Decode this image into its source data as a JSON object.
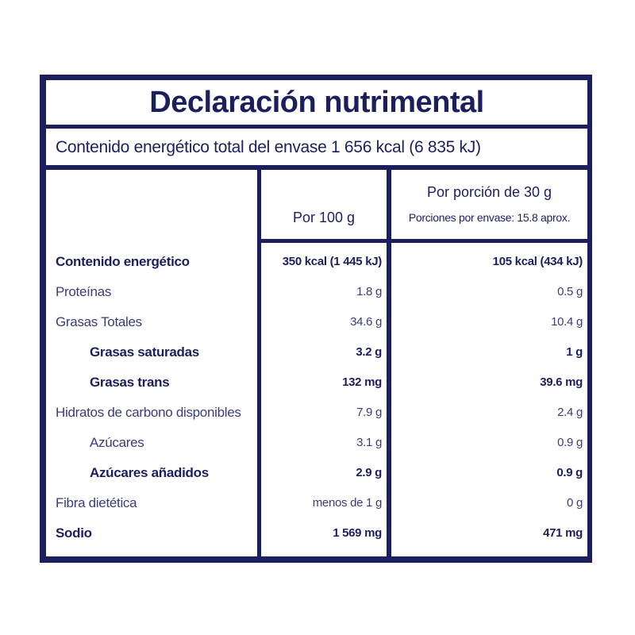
{
  "title": "Declaración nutrimental",
  "energy_total": "Contenido energético total del envase 1 656 kcal (6 835 kJ)",
  "headers": {
    "per100": "Por 100 g",
    "portion_line1": "Por porción de 30 g",
    "portion_line2": "Porciones por envase: 15.8 aprox."
  },
  "rows": [
    {
      "label": "Contenido energético",
      "per100": "350 kcal (1 445 kJ)",
      "portion": "105 kcal (434 kJ)"
    },
    {
      "label": "Proteínas",
      "per100": "1.8 g",
      "portion": "0.5 g"
    },
    {
      "label": "Grasas Totales",
      "per100": "34.6 g",
      "portion": "10.4 g"
    },
    {
      "label": "Grasas saturadas",
      "per100": "3.2 g",
      "portion": "1 g"
    },
    {
      "label": "Grasas trans",
      "per100": "132 mg",
      "portion": "39.6 mg"
    },
    {
      "label": "Hidratos de carbono disponibles",
      "per100": "7.9 g",
      "portion": "2.4 g"
    },
    {
      "label": "Azúcares",
      "per100": "3.1 g",
      "portion": "0.9 g"
    },
    {
      "label": "Azúcares añadidos",
      "per100": "2.9 g",
      "portion": "0.9 g"
    },
    {
      "label": "Fibra dietética",
      "per100": "menos de 1 g",
      "portion": "0 g"
    },
    {
      "label": "Sodio",
      "per100": "1 569 mg",
      "portion": "471 mg"
    }
  ],
  "colors": {
    "ink": "#1c1f5e",
    "background": "#ffffff"
  }
}
